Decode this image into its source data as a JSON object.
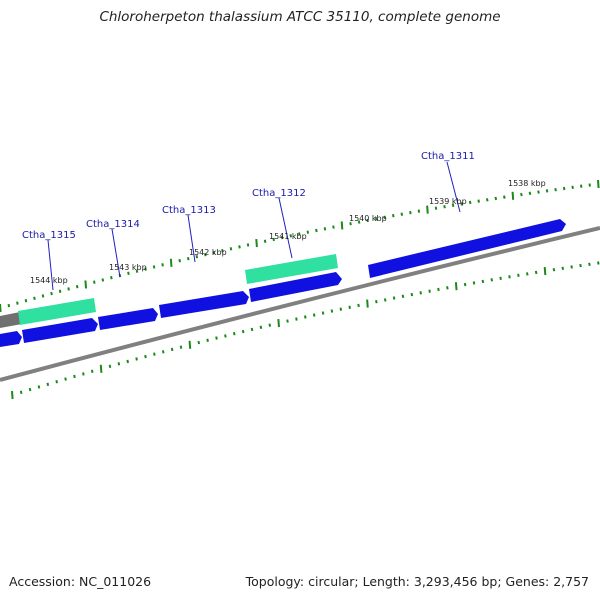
{
  "title": "Chloroherpeton thalassium ATCC 35110, complete genome",
  "accession_text": "Accession: NC_011026",
  "summary_text": "Topology: circular; Length: 3,293,456 bp; Genes: 2,757",
  "colors": {
    "backbone": "#808080",
    "cds": "#1010e0",
    "rna": "#30e0a0",
    "tick": "#1a8a1a",
    "label": "#1a1aa8",
    "leader": "#2020c0"
  },
  "scale_ticks": [
    {
      "label": "1538 kbp"
    },
    {
      "label": "1539 kbp"
    },
    {
      "label": "1540 kbp"
    },
    {
      "label": "1541 kbp"
    },
    {
      "label": "1542 kbp"
    },
    {
      "label": "1543 kbp"
    },
    {
      "label": "1544 kbp"
    }
  ],
  "gene_labels": [
    {
      "text": "Ctha_1311"
    },
    {
      "text": "Ctha_1312"
    },
    {
      "text": "Ctha_1313"
    },
    {
      "text": "Ctha_1314"
    },
    {
      "text": "Ctha_1315"
    }
  ]
}
